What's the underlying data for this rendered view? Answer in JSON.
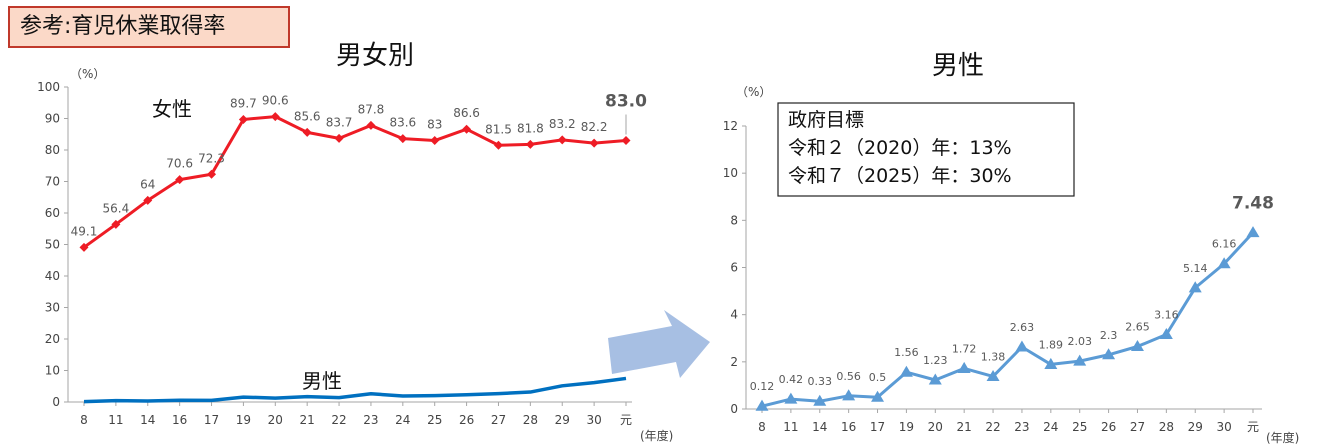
{
  "header_label": "参考:育児休業取得率",
  "chart_data": [
    {
      "type": "line",
      "title": "男女別",
      "y_unit": "（%）",
      "x_unit": "(年度)",
      "categories": [
        "8",
        "11",
        "14",
        "16",
        "17",
        "19",
        "20",
        "21",
        "22",
        "23",
        "24",
        "25",
        "26",
        "27",
        "28",
        "29",
        "30",
        "元"
      ],
      "yticks": [
        "0",
        "10",
        "20",
        "30",
        "40",
        "50",
        "60",
        "70",
        "80",
        "90",
        "100"
      ],
      "ylim": [
        0,
        100
      ],
      "grid": false,
      "series": [
        {
          "name": "女性",
          "color": "#ee1c25",
          "marker": "diamond",
          "values": [
            49.1,
            56.4,
            64,
            70.6,
            72.3,
            89.7,
            90.6,
            85.6,
            83.7,
            87.8,
            83.6,
            83,
            86.6,
            81.5,
            81.8,
            83.2,
            82.2,
            83.0
          ],
          "data_labels": [
            "49.1",
            "56.4",
            "64",
            "70.6",
            "72.3",
            "89.7",
            "90.6",
            "85.6",
            "83.7",
            "87.8",
            "83.6",
            "83",
            "86.6",
            "81.5",
            "81.8",
            "83.2",
            "82.2",
            "83.0"
          ]
        },
        {
          "name": "男性",
          "color": "#0070c0",
          "marker": "none",
          "values": [
            0.12,
            0.42,
            0.33,
            0.56,
            0.5,
            1.56,
            1.23,
            1.72,
            1.38,
            2.63,
            1.89,
            2.03,
            2.3,
            2.65,
            3.16,
            5.14,
            6.16,
            7.48
          ]
        }
      ]
    },
    {
      "type": "line",
      "title": "男性",
      "y_unit": "（%）",
      "x_unit": "(年度)",
      "categories": [
        "8",
        "11",
        "14",
        "16",
        "17",
        "19",
        "20",
        "21",
        "22",
        "23",
        "24",
        "25",
        "26",
        "27",
        "28",
        "29",
        "30",
        "元"
      ],
      "yticks": [
        "0",
        "2",
        "4",
        "6",
        "8",
        "10",
        "12"
      ],
      "ylim": [
        0,
        12
      ],
      "grid": false,
      "series": [
        {
          "name": "男性",
          "color": "#5b9bd5",
          "marker": "triangle",
          "values": [
            0.12,
            0.42,
            0.33,
            0.56,
            0.5,
            1.56,
            1.23,
            1.72,
            1.38,
            2.63,
            1.89,
            2.03,
            2.3,
            2.65,
            3.16,
            5.14,
            6.16,
            7.48
          ],
          "data_labels": [
            "0.12",
            "0.42",
            "0.33",
            "0.56",
            "0.5",
            "1.56",
            "1.23",
            "1.72",
            "1.38",
            "2.63",
            "1.89",
            "2.03",
            "2.3",
            "2.65",
            "3.16",
            "5.14",
            "6.16",
            "7.48"
          ]
        }
      ],
      "annotation": {
        "title": "政府目標",
        "lines": [
          "令和２（2020）年：13%",
          "令和７（2025）年：30%"
        ]
      }
    }
  ],
  "colors": {
    "arrow": "#a7bfe3",
    "axis": "#a6a6a6",
    "label_box_bg": "#fbd9c8",
    "label_box_border": "#c0392b"
  }
}
